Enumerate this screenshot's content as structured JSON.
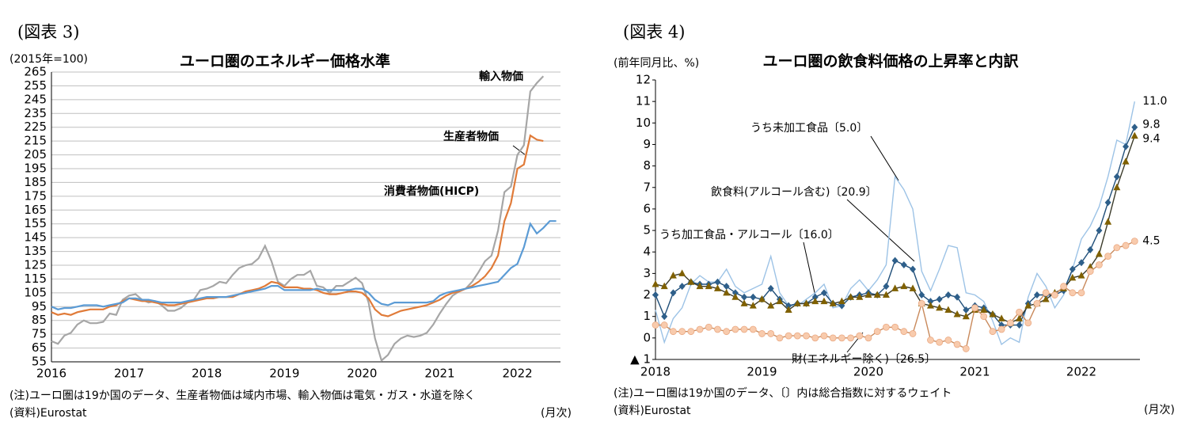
{
  "figure_labels": [
    "(図表 3)",
    "(図表 4)"
  ],
  "chart_data": [
    {
      "type": "line",
      "title": "ユーロ圏のエネルギー価格水準",
      "unit_label": "(2015年=100)",
      "notes": [
        "(注)ユーロ圏は19か国のデータ、生産者物価は域内市場、輸入物価は電気・ガス・水道を除く",
        "(資料)Eurostat"
      ],
      "x_unit": "(月次)",
      "categories": [
        "2016",
        null,
        null,
        null,
        null,
        null,
        null,
        null,
        null,
        null,
        null,
        null,
        "2017",
        null,
        null,
        null,
        null,
        null,
        null,
        null,
        null,
        null,
        null,
        null,
        "2018",
        null,
        null,
        null,
        null,
        null,
        null,
        null,
        null,
        null,
        null,
        null,
        "2019",
        null,
        null,
        null,
        null,
        null,
        null,
        null,
        null,
        null,
        null,
        null,
        "2020",
        null,
        null,
        null,
        null,
        null,
        null,
        null,
        null,
        null,
        null,
        null,
        "2021",
        null,
        null,
        null,
        null,
        null,
        null,
        null,
        null,
        null,
        null,
        null,
        "2022",
        null,
        null,
        null,
        null,
        null,
        null
      ],
      "ylim": [
        55,
        265
      ],
      "yticks": [
        55,
        65,
        75,
        85,
        95,
        105,
        115,
        125,
        135,
        145,
        155,
        165,
        175,
        185,
        195,
        205,
        215,
        225,
        235,
        245,
        255,
        265
      ],
      "grid": true,
      "series": [
        {
          "name": "輸入物価",
          "color": "#a6a6a6",
          "values": [
            70,
            68,
            74,
            76,
            82,
            85,
            83,
            83,
            84,
            90,
            89,
            100,
            103,
            104,
            100,
            98,
            99,
            96,
            92,
            92,
            94,
            98,
            100,
            107,
            108,
            110,
            113,
            112,
            118,
            123,
            125,
            126,
            130,
            139,
            128,
            113,
            110,
            115,
            118,
            118,
            121,
            110,
            109,
            105,
            110,
            110,
            113,
            116,
            112,
            98,
            72,
            56,
            60,
            68,
            72,
            74,
            73,
            74,
            76,
            82,
            90,
            97,
            103,
            106,
            108,
            113,
            120,
            128,
            132,
            150,
            178,
            182,
            205,
            212,
            251,
            257,
            262,
            null,
            null
          ]
        },
        {
          "name": "生産者物価",
          "color": "#e07b39",
          "values": [
            91,
            89,
            90,
            89,
            91,
            92,
            93,
            93,
            93,
            95,
            96,
            99,
            101,
            100,
            99,
            99,
            98,
            97,
            96,
            96,
            97,
            98,
            99,
            100,
            101,
            101,
            102,
            102,
            102,
            104,
            106,
            107,
            108,
            110,
            113,
            112,
            109,
            109,
            109,
            108,
            108,
            107,
            105,
            104,
            104,
            105,
            106,
            106,
            105,
            101,
            93,
            89,
            88,
            90,
            92,
            93,
            94,
            95,
            96,
            98,
            100,
            103,
            105,
            106,
            108,
            110,
            113,
            117,
            123,
            132,
            157,
            170,
            195,
            198,
            219,
            216,
            215,
            null,
            null
          ]
        },
        {
          "name": "消費者物価(HICP)",
          "color": "#5b9bd5",
          "values": [
            95,
            93,
            94,
            94,
            95,
            96,
            96,
            96,
            95,
            96,
            97,
            98,
            101,
            101,
            100,
            100,
            99,
            98,
            98,
            98,
            98,
            99,
            100,
            101,
            102,
            102,
            102,
            102,
            103,
            104,
            105,
            106,
            107,
            108,
            110,
            110,
            107,
            107,
            107,
            107,
            107,
            108,
            107,
            107,
            107,
            107,
            107,
            108,
            108,
            105,
            100,
            97,
            96,
            98,
            98,
            98,
            98,
            98,
            98,
            99,
            103,
            105,
            106,
            107,
            108,
            109,
            110,
            111,
            112,
            113,
            118,
            123,
            126,
            138,
            155,
            148,
            152,
            157,
            157
          ]
        }
      ]
    },
    {
      "type": "line",
      "title": "ユーロ圏の飲食料価格の上昇率と内訳",
      "unit_label": "(前年同月比、%)",
      "notes": [
        "(注)ユーロ圏は19か国のデータ、〔〕内は総合指数に対するウェイト",
        "(資料)Eurostat"
      ],
      "x_unit": "(月次)",
      "categories": [
        "2018",
        null,
        null,
        null,
        null,
        null,
        null,
        null,
        null,
        null,
        null,
        null,
        "2019",
        null,
        null,
        null,
        null,
        null,
        null,
        null,
        null,
        null,
        null,
        null,
        "2020",
        null,
        null,
        null,
        null,
        null,
        null,
        null,
        null,
        null,
        null,
        null,
        "2021",
        null,
        null,
        null,
        null,
        null,
        null,
        null,
        null,
        null,
        null,
        null,
        "2022",
        null,
        null,
        null,
        null,
        null,
        null
      ],
      "ylim": [
        -1,
        12
      ],
      "yticks": [
        {
          "value": -1,
          "label": "▲ 1"
        },
        0,
        1,
        2,
        3,
        4,
        5,
        6,
        7,
        8,
        9,
        10,
        11,
        12
      ],
      "grid": false,
      "series": [
        {
          "name": "うち未加工食品〔5.0〕",
          "color": "#9dc3e6",
          "marker": "none",
          "values": [
            1.3,
            -0.2,
            0.9,
            1.4,
            2.5,
            2.9,
            2.6,
            2.6,
            3.2,
            2.4,
            2.1,
            2.3,
            2.5,
            3.8,
            2.1,
            1.5,
            1.5,
            1.8,
            2.1,
            2.5,
            1.4,
            1.5,
            2.3,
            2.7,
            2.2,
            2.7,
            3.4,
            7.5,
            6.9,
            6.0,
            3.1,
            2.2,
            3.2,
            4.3,
            4.2,
            2.1,
            2.0,
            1.7,
            0.8,
            -0.3,
            0.0,
            -0.2,
            1.9,
            3.0,
            2.4,
            1.4,
            2.0,
            3.2,
            4.6,
            5.2,
            6.1,
            7.5,
            9.2,
            9.0,
            11.0
          ],
          "value_labels": [
            null,
            null,
            null,
            null,
            null,
            null,
            null,
            null,
            null,
            null,
            null,
            null,
            null,
            null,
            null,
            null,
            null,
            null,
            null,
            null,
            null,
            null,
            null,
            null,
            null,
            null,
            null,
            null,
            null,
            null,
            null,
            null,
            null,
            null,
            null,
            null,
            null,
            null,
            null,
            null,
            null,
            null,
            null,
            null,
            null,
            null,
            null,
            null,
            null,
            null,
            null,
            null,
            null,
            null,
            "11.0"
          ]
        },
        {
          "name": "飲食料(アルコール含む)〔20.9〕",
          "color": "#1f4e79",
          "marker": "diamond",
          "marker_color": "#2e5f8a",
          "values": [
            2.0,
            1.0,
            2.1,
            2.4,
            2.6,
            2.5,
            2.5,
            2.6,
            2.4,
            2.1,
            1.9,
            1.9,
            1.8,
            2.3,
            1.8,
            1.5,
            1.6,
            1.6,
            1.9,
            2.1,
            1.6,
            1.5,
            1.9,
            2.0,
            2.1,
            2.0,
            2.4,
            3.6,
            3.4,
            3.2,
            2.0,
            1.7,
            1.8,
            2.0,
            1.9,
            1.3,
            1.5,
            1.4,
            1.1,
            0.6,
            0.6,
            0.6,
            1.6,
            2.0,
            2.0,
            2.0,
            2.2,
            3.2,
            3.5,
            4.1,
            5.0,
            6.3,
            7.5,
            8.9,
            9.8
          ],
          "value_labels": [
            null,
            null,
            null,
            null,
            null,
            null,
            null,
            null,
            null,
            null,
            null,
            null,
            null,
            null,
            null,
            null,
            null,
            null,
            null,
            null,
            null,
            null,
            null,
            null,
            null,
            null,
            null,
            null,
            null,
            null,
            null,
            null,
            null,
            null,
            null,
            null,
            null,
            null,
            null,
            null,
            null,
            null,
            null,
            null,
            null,
            null,
            null,
            null,
            null,
            null,
            null,
            null,
            null,
            null,
            "9.8"
          ]
        },
        {
          "name": "うち加工食品・アルコール〔16.0〕",
          "color": "#3a3a2a",
          "marker": "triangle",
          "marker_color": "#7f6000",
          "values": [
            2.5,
            2.4,
            2.9,
            3.0,
            2.6,
            2.4,
            2.4,
            2.3,
            2.1,
            1.9,
            1.6,
            1.5,
            1.8,
            1.5,
            1.7,
            1.3,
            1.6,
            1.6,
            1.7,
            1.7,
            1.6,
            1.7,
            1.9,
            1.9,
            2.0,
            2.0,
            2.0,
            2.3,
            2.4,
            2.3,
            1.6,
            1.5,
            1.4,
            1.3,
            1.1,
            1.0,
            1.3,
            1.3,
            1.1,
            0.9,
            0.7,
            0.9,
            1.5,
            1.6,
            1.8,
            2.1,
            2.3,
            2.8,
            2.9,
            3.3,
            3.9,
            5.4,
            7.0,
            8.2,
            9.4
          ],
          "value_labels": [
            null,
            null,
            null,
            null,
            null,
            null,
            null,
            null,
            null,
            null,
            null,
            null,
            null,
            null,
            null,
            null,
            null,
            null,
            null,
            null,
            null,
            null,
            null,
            null,
            null,
            null,
            null,
            null,
            null,
            null,
            null,
            null,
            null,
            null,
            null,
            null,
            null,
            null,
            null,
            null,
            null,
            null,
            null,
            null,
            null,
            null,
            null,
            null,
            null,
            null,
            null,
            null,
            null,
            null,
            "9.4"
          ]
        },
        {
          "name": "財(エネルギー除く)〔26.5〕",
          "color": "#c98a5c",
          "marker": "circle",
          "marker_color": "#f8cbad",
          "values": [
            0.6,
            0.6,
            0.3,
            0.3,
            0.3,
            0.4,
            0.5,
            0.4,
            0.3,
            0.4,
            0.4,
            0.4,
            0.2,
            0.2,
            0.0,
            0.1,
            0.1,
            0.1,
            0.0,
            0.1,
            0.0,
            0.0,
            0.0,
            0.1,
            0.0,
            0.3,
            0.5,
            0.5,
            0.3,
            0.2,
            1.6,
            -0.1,
            -0.2,
            -0.1,
            -0.3,
            -0.5,
            1.4,
            1.0,
            0.3,
            0.4,
            0.7,
            1.2,
            0.7,
            1.6,
            2.1,
            2.0,
            2.4,
            2.1,
            2.1,
            3.1,
            3.4,
            3.8,
            4.2,
            4.3,
            4.5
          ],
          "value_labels": [
            null,
            null,
            null,
            null,
            null,
            null,
            null,
            null,
            null,
            null,
            null,
            null,
            null,
            null,
            null,
            null,
            null,
            null,
            null,
            null,
            null,
            null,
            null,
            null,
            null,
            null,
            null,
            null,
            null,
            null,
            null,
            null,
            null,
            null,
            null,
            null,
            null,
            null,
            null,
            null,
            null,
            null,
            null,
            null,
            null,
            null,
            null,
            null,
            null,
            null,
            null,
            null,
            null,
            null,
            "4.5"
          ]
        }
      ]
    }
  ]
}
